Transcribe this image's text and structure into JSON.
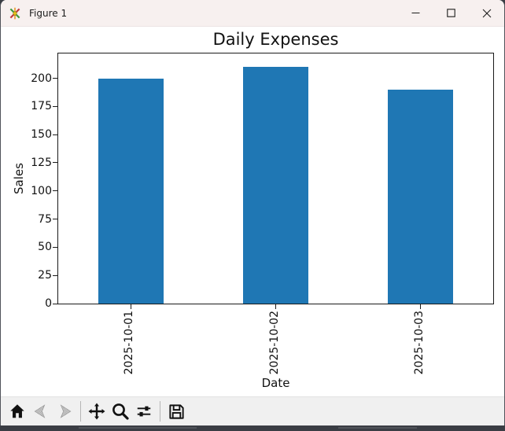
{
  "window": {
    "title": "Figure 1"
  },
  "titlebar": {
    "icons": [
      "matplotlib-logo",
      "minimize",
      "maximize",
      "close"
    ]
  },
  "chart_data": {
    "type": "bar",
    "title": "Daily Expenses",
    "xlabel": "Date",
    "ylabel": "Sales",
    "categories": [
      "2025-10-01",
      "2025-10-02",
      "2025-10-03"
    ],
    "values": [
      200,
      210,
      190
    ],
    "yticks": [
      0,
      25,
      50,
      75,
      100,
      125,
      150,
      175,
      200
    ],
    "ylim": [
      0,
      222
    ],
    "xtick_rotation": 90,
    "grid": false,
    "legend": false,
    "bar_color": "#1f77b4"
  },
  "toolbar": {
    "icons": [
      "home",
      "back",
      "forward",
      "pan",
      "zoom-to-rect",
      "configure-subplots",
      "save"
    ]
  },
  "colors": {
    "bar": "#1f77b4",
    "titlebar_bg": "#f7f0ef",
    "toolbar_bg": "#f0f0f0",
    "canvas_bg": "#ffffff",
    "window_border": "#50535a",
    "bottom_strip": "#3a3d44",
    "spine": "#1a1a1a"
  }
}
